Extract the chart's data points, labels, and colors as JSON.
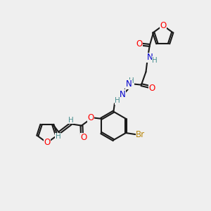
{
  "background_color": "#efefef",
  "bond_color": "#1a1a1a",
  "bond_width": 1.5,
  "atom_colors": {
    "O": "#ff0000",
    "N": "#0000cc",
    "Br": "#b8860b",
    "H": "#4a9090",
    "C": "#1a1a1a"
  },
  "font_size_atom": 8.5,
  "font_size_h": 7.5
}
